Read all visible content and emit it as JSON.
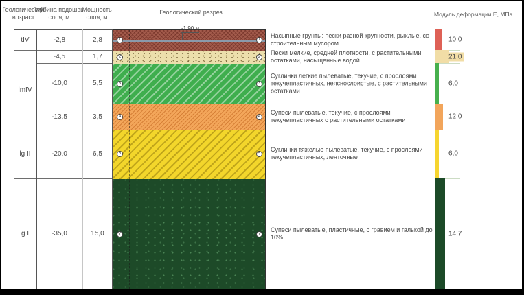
{
  "section_title": "Геологический разрез",
  "table_headers": {
    "age": "Геологический возраст",
    "depth": "Глубина подошвы слоя, м",
    "thickness": "Мощность слоя, м"
  },
  "modulus_header": "Модуль деформации Е, МПа",
  "groundwater": {
    "label": "-1,90 м",
    "depth_m": 1.9
  },
  "age_groups": [
    {
      "label": "tIV",
      "from": 0,
      "to": 2.8
    },
    {
      "label": "lmIV",
      "from": 2.8,
      "to": 13.5
    },
    {
      "label": "lg II",
      "from": 13.5,
      "to": 20
    },
    {
      "label": "g I",
      "from": 20,
      "to": 35
    }
  ],
  "layers": [
    {
      "num": "1",
      "bottom_depth_label": "-2,8",
      "thickness_label": "2,8",
      "depth_from": 0,
      "depth_to": 2.8,
      "description": "Насыпные грунты: пески разной крупности, рыхлые, со строительным мусором",
      "modulus_label": "10,0",
      "modulus_mpa": 10,
      "pattern": "fill-brown",
      "bar_color": "#de6156"
    },
    {
      "num": "2",
      "bottom_depth_label": "-4,5",
      "thickness_label": "1,7",
      "depth_from": 2.8,
      "depth_to": 4.5,
      "description": "Пески мелкие, средней плотности, с растительными остатками, насыщенные водой",
      "modulus_label": "21,0",
      "modulus_mpa": 21,
      "pattern": "sand-dots",
      "bar_color": "#f1dda6",
      "label_on_bar": true
    },
    {
      "num": "3",
      "bottom_depth_label": "-10,0",
      "thickness_label": "5,5",
      "depth_from": 4.5,
      "depth_to": 10,
      "description": "Суглинки легкие пылеватые, текучие, с прослоями текучепластичных, неяснослоистые, с растительными остатками",
      "modulus_label": "6,0",
      "modulus_mpa": 6,
      "pattern": "green-hatch",
      "bar_color": "#47b04d"
    },
    {
      "num": "4",
      "bottom_depth_label": "-13,5",
      "thickness_label": "3,5",
      "depth_from": 10,
      "depth_to": 13.5,
      "description": "Супеси пылеватые, текучие, с прослоями текучепластичных с растительными остатками",
      "modulus_label": "12,0",
      "modulus_mpa": 12,
      "pattern": "orange-hatch",
      "bar_color": "#f2a55b"
    },
    {
      "num": "5",
      "bottom_depth_label": "-20,0",
      "thickness_label": "6,5",
      "depth_from": 13.5,
      "depth_to": 20,
      "description": "Суглинки тяжелые пылеватые, текучие, с прослоями текучепластичных, ленточные",
      "modulus_label": "6,0",
      "modulus_mpa": 6,
      "pattern": "yellow-hatch",
      "bar_color": "#f6d52f"
    },
    {
      "num": "7",
      "bottom_depth_label": "-35,0",
      "thickness_label": "15,0",
      "depth_from": 20,
      "depth_to": 35,
      "description": "Супеси пылеватые, пластичные, с гравием и галькой до 10%",
      "modulus_label": "14,7",
      "modulus_mpa": 14.7,
      "pattern": "darkgreen-dots",
      "bar_color": "#1c4a28"
    }
  ]
}
